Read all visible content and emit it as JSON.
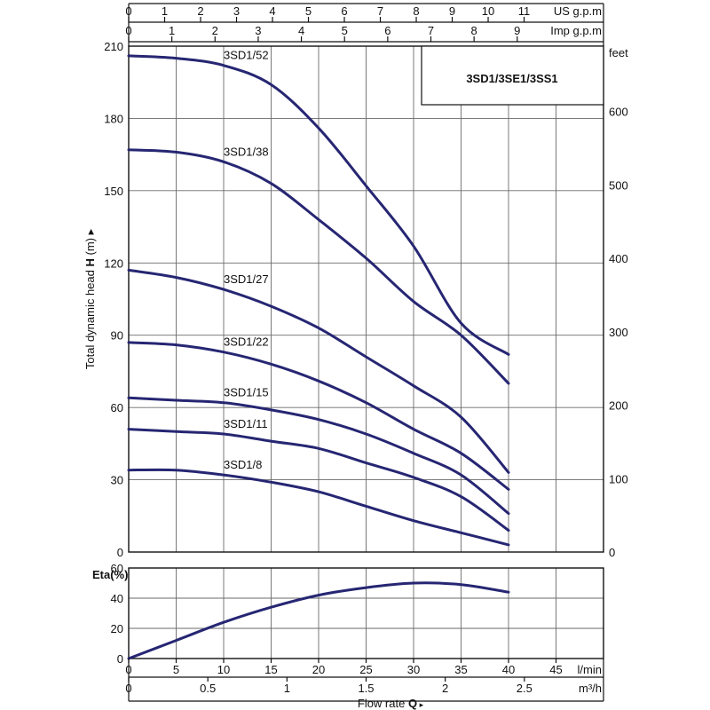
{
  "chart_data": [
    {
      "type": "line",
      "title": "3SD1/3SE1/3SS1",
      "ylabel": "Total dynamic head",
      "ylabel_symbol": "H",
      "ylabel_unit": "(m)",
      "ylim": [
        0,
        210
      ],
      "y_ticks": [
        0,
        30,
        60,
        90,
        120,
        150,
        180,
        210
      ],
      "y2_label": "feet",
      "y2_ticks": [
        0,
        100,
        200,
        300,
        400,
        500,
        600
      ],
      "xlim": [
        0,
        50
      ],
      "x_unit": "l/min",
      "top_scales": [
        {
          "label": "US g.p.m",
          "ticks": [
            "0",
            "1",
            "2",
            "3",
            "4",
            "5",
            "6",
            "7",
            "8",
            "9",
            "10",
            "11"
          ]
        },
        {
          "label": "Imp g.p.m",
          "ticks": [
            "0",
            "1",
            "2",
            "3",
            "4",
            "5",
            "6",
            "7",
            "8",
            "9"
          ]
        }
      ],
      "grid": true,
      "series": [
        {
          "name": "3SD1/52",
          "x": [
            0,
            5,
            10,
            15,
            20,
            25,
            30,
            35,
            40
          ],
          "y": [
            206,
            205,
            202,
            194,
            176,
            152,
            127,
            95,
            82
          ]
        },
        {
          "name": "3SD1/38",
          "x": [
            0,
            5,
            10,
            15,
            20,
            25,
            30,
            35,
            40
          ],
          "y": [
            167,
            166,
            162,
            153,
            138,
            122,
            104,
            90,
            70
          ]
        },
        {
          "name": "3SD1/27",
          "x": [
            0,
            5,
            10,
            15,
            20,
            25,
            30,
            35,
            40
          ],
          "y": [
            117,
            114,
            109,
            102,
            93,
            81,
            69,
            56,
            33
          ]
        },
        {
          "name": "3SD1/22",
          "x": [
            0,
            5,
            10,
            15,
            20,
            25,
            30,
            35,
            40
          ],
          "y": [
            87,
            86,
            83,
            78,
            71,
            62,
            51,
            41,
            26
          ]
        },
        {
          "name": "3SD1/15",
          "x": [
            0,
            5,
            10,
            15,
            20,
            25,
            30,
            35,
            40
          ],
          "y": [
            64,
            63,
            62,
            59,
            55,
            49,
            41,
            32,
            16
          ]
        },
        {
          "name": "3SD1/11",
          "x": [
            0,
            5,
            10,
            15,
            20,
            25,
            30,
            35,
            40
          ],
          "y": [
            51,
            50,
            49,
            46,
            43,
            37,
            31,
            23,
            9
          ]
        },
        {
          "name": "3SD1/8",
          "x": [
            0,
            5,
            10,
            15,
            20,
            25,
            30,
            35,
            40
          ],
          "y": [
            34,
            34,
            32,
            29,
            25,
            19,
            13,
            8,
            3
          ]
        }
      ]
    },
    {
      "type": "line",
      "ylabel": "Eta(%)",
      "ylim": [
        0,
        60
      ],
      "y_ticks": [
        0,
        20,
        40,
        60
      ],
      "xlim": [
        0,
        50
      ],
      "x_ticks": [
        0,
        5,
        10,
        15,
        20,
        25,
        30,
        35,
        40,
        45
      ],
      "x_unit": "l/min",
      "x2_ticks": [
        "0",
        "0.5",
        "1",
        "1.5",
        "2",
        "2.5"
      ],
      "x2_unit": "m³/h",
      "xlabel": "Flow  rate",
      "xlabel_symbol": "Q",
      "grid": true,
      "series": [
        {
          "name": "",
          "x": [
            0,
            5,
            10,
            15,
            20,
            25,
            30,
            35,
            40
          ],
          "y": [
            0,
            12,
            24,
            34,
            42,
            47,
            50,
            49,
            44
          ]
        }
      ]
    }
  ]
}
